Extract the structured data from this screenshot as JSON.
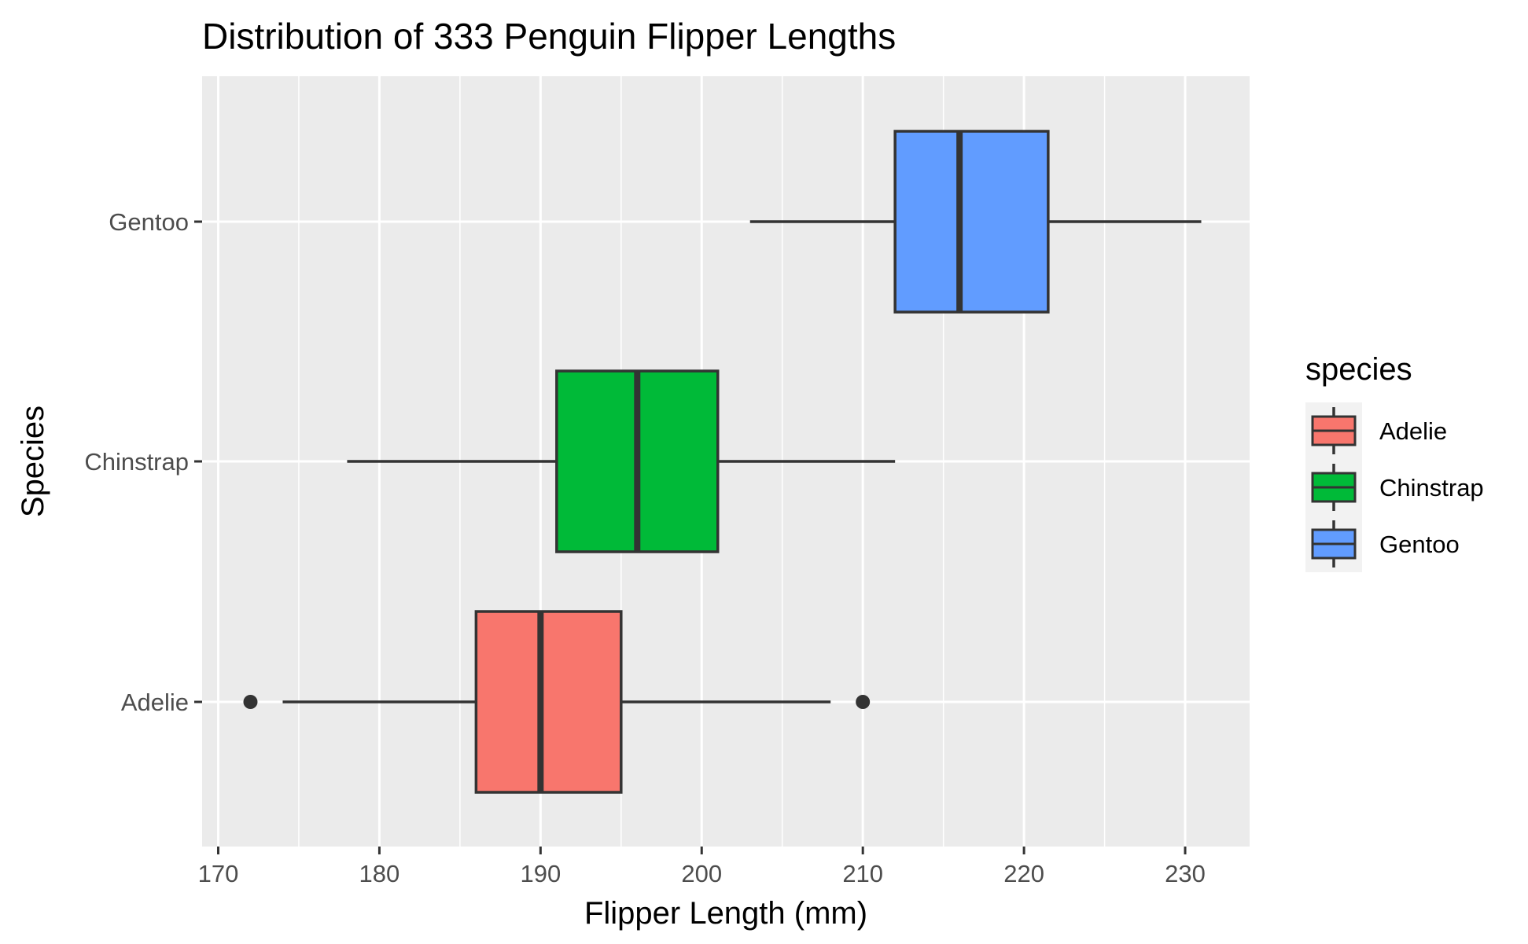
{
  "chart_data": {
    "type": "boxplot",
    "orientation": "horizontal",
    "title": "Distribution of 333 Penguin Flipper Lengths",
    "xlabel": "Flipper Length (mm)",
    "ylabel": "Species",
    "xlim": [
      169,
      234
    ],
    "x_ticks": [
      170,
      180,
      190,
      200,
      210,
      220,
      230
    ],
    "x_tick_labels": [
      "170",
      "180",
      "190",
      "200",
      "210",
      "220",
      "230"
    ],
    "x_minor_ticks": [
      175,
      185,
      195,
      205,
      215,
      225
    ],
    "categories": [
      "Adelie",
      "Chinstrap",
      "Gentoo"
    ],
    "grid": true,
    "series": [
      {
        "name": "Adelie",
        "color": "#F8766D",
        "whisker_low": 174,
        "q1": 186,
        "median": 190,
        "q3": 195,
        "whisker_high": 208,
        "outliers": [
          172,
          210
        ]
      },
      {
        "name": "Chinstrap",
        "color": "#00BA38",
        "whisker_low": 178,
        "q1": 191,
        "median": 196,
        "q3": 201,
        "whisker_high": 212,
        "outliers": []
      },
      {
        "name": "Gentoo",
        "color": "#619CFF",
        "whisker_low": 203,
        "q1": 212,
        "median": 216,
        "q3": 221.5,
        "whisker_high": 231,
        "outliers": []
      }
    ],
    "legend": {
      "title": "species",
      "position": "right",
      "entries": [
        "Adelie",
        "Chinstrap",
        "Gentoo"
      ]
    }
  }
}
